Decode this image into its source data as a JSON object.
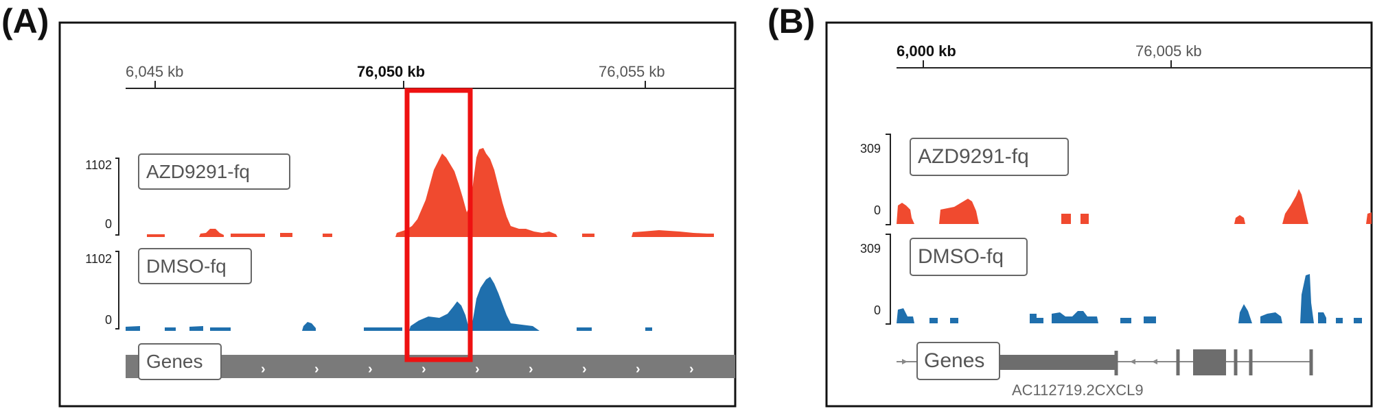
{
  "panel_a": {
    "label": "(A)",
    "axis_ticks": [
      {
        "text": "6,045 kb",
        "bold": false
      },
      {
        "text": "76,050 kb",
        "bold": true
      },
      {
        "text": "76,055 kb",
        "bold": false
      }
    ],
    "tracks": [
      {
        "name": "AZD9291-fq",
        "max": "1102",
        "min": "0",
        "color": "#f04a2f"
      },
      {
        "name": "DMSO-fq",
        "max": "1102",
        "min": "0",
        "color": "#1f6fad"
      }
    ],
    "genes_label": "Genes",
    "highlight_color": "#ee1111"
  },
  "panel_b": {
    "label": "(B)",
    "axis_ticks": [
      {
        "text": "6,000 kb",
        "bold": true
      },
      {
        "text": "76,005 kb",
        "bold": false
      }
    ],
    "tracks": [
      {
        "name": "AZD9291-fq",
        "max": "309",
        "min": "0",
        "color": "#f04a2f"
      },
      {
        "name": "DMSO-fq",
        "max": "309",
        "min": "0",
        "color": "#1f6fad"
      }
    ],
    "genes_label": "Genes",
    "gene_names": "AC112719.2CXCL9"
  }
}
